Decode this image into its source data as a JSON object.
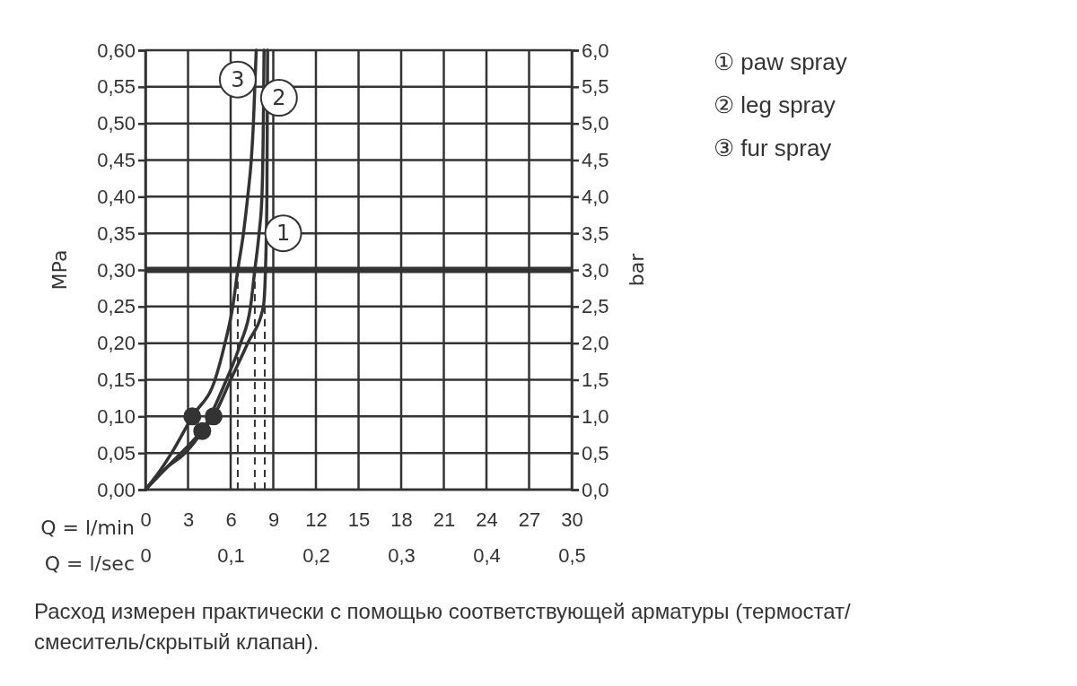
{
  "chart_data": {
    "type": "line",
    "xlabel": "Q = l/min",
    "ylabel": "MPa",
    "y2label": "bar",
    "x2label": "Q = l/sec",
    "xlim": [
      0,
      30
    ],
    "xticks": [
      0,
      3,
      6,
      9,
      12,
      15,
      18,
      21,
      24,
      27,
      30
    ],
    "x2lim": [
      0,
      0.5
    ],
    "x2ticks": [
      0,
      {
        "value": 0.1,
        "label": "0,1"
      },
      {
        "value": 0.2,
        "label": "0,2"
      },
      {
        "value": 0.3,
        "label": "0,3"
      },
      {
        "value": 0.4,
        "label": "0,4"
      },
      {
        "value": 0.5,
        "label": "0,5"
      }
    ],
    "ylim": [
      0,
      0.6
    ],
    "yticks": [
      {
        "value": 0,
        "label": "0,00"
      },
      {
        "value": 0.05,
        "label": "0,05"
      },
      {
        "value": 0.1,
        "label": "0,10"
      },
      {
        "value": 0.15,
        "label": "0,15"
      },
      {
        "value": 0.2,
        "label": "0,20"
      },
      {
        "value": 0.25,
        "label": "0,25"
      },
      {
        "value": 0.3,
        "label": "0,30"
      },
      {
        "value": 0.35,
        "label": "0,35"
      },
      {
        "value": 0.4,
        "label": "0,40"
      },
      {
        "value": 0.45,
        "label": "0,45"
      },
      {
        "value": 0.5,
        "label": "0,50"
      },
      {
        "value": 0.55,
        "label": "0,55"
      },
      {
        "value": 0.6,
        "label": "0,60"
      }
    ],
    "y2lim": [
      0,
      6
    ],
    "y2ticks": [
      {
        "value": 0,
        "label": "0,0"
      },
      {
        "value": 0.5,
        "label": "0,5"
      },
      {
        "value": 1,
        "label": "1,0"
      },
      {
        "value": 1.5,
        "label": "1,5"
      },
      {
        "value": 2,
        "label": "2,0"
      },
      {
        "value": 2.5,
        "label": "2,5"
      },
      {
        "value": 3,
        "label": "3,0"
      },
      {
        "value": 3.5,
        "label": "3,5"
      },
      {
        "value": 4,
        "label": "4,0"
      },
      {
        "value": 4.5,
        "label": "4,5"
      },
      {
        "value": 5,
        "label": "5,0"
      },
      {
        "value": 5.5,
        "label": "5,5"
      },
      {
        "value": 6,
        "label": "6,0"
      }
    ],
    "grid": true,
    "legend": "top right",
    "series": [
      {
        "name": "① paw spray",
        "color": "#333333",
        "x": [
          0,
          2,
          3.5,
          4.8,
          6,
          7.2,
          8.3,
          8.45,
          8.55,
          8.6
        ],
        "values": [
          0,
          0.04,
          0.07,
          0.1,
          0.15,
          0.2,
          0.25,
          0.3,
          0.4,
          0.6
        ]
      },
      {
        "name": "② leg spray",
        "color": "#333333",
        "x": [
          0,
          1.5,
          2.8,
          4.0,
          5.7,
          6.7,
          7.4,
          7.7,
          8.0,
          8.2,
          8.3,
          8.35
        ],
        "values": [
          0,
          0.03,
          0.05,
          0.08,
          0.15,
          0.2,
          0.25,
          0.3,
          0.35,
          0.4,
          0.5,
          0.6
        ]
      },
      {
        "name": "③ fur spray",
        "color": "#333333",
        "x": [
          0,
          1,
          2,
          3.3,
          4.9,
          5.6,
          6.15,
          6.5,
          6.9,
          7.2,
          7.45,
          7.6,
          7.7,
          7.8
        ],
        "values": [
          0,
          0.025,
          0.055,
          0.1,
          0.15,
          0.2,
          0.25,
          0.3,
          0.35,
          0.4,
          0.45,
          0.5,
          0.55,
          0.6
        ]
      },
      {
        "type": "scatter",
        "color": "#333333",
        "x": [
          3.3,
          4.0,
          4.8
        ],
        "values": [
          0.1,
          0.08,
          0.1
        ]
      }
    ],
    "ref_lines": [
      {
        "axis": "y",
        "value": 0.3
      },
      {
        "axis": "x",
        "value": 6.5,
        "line_style": "dashed"
      },
      {
        "axis": "x",
        "value": 7.7,
        "line_style": "dashed"
      },
      {
        "axis": "x",
        "value": 8.4,
        "line_style": "dashed"
      }
    ],
    "annotations": [
      {
        "text": "3",
        "x": 6.5,
        "y": 0.56
      },
      {
        "text": "2",
        "x": 9.4,
        "y": 0.535
      },
      {
        "text": "1",
        "x": 9.7,
        "y": 0.35
      },
      "Расход измерен практически с помощью соответствующей арматуры (термостат/ смеситель/скрытый клапан)."
    ]
  }
}
